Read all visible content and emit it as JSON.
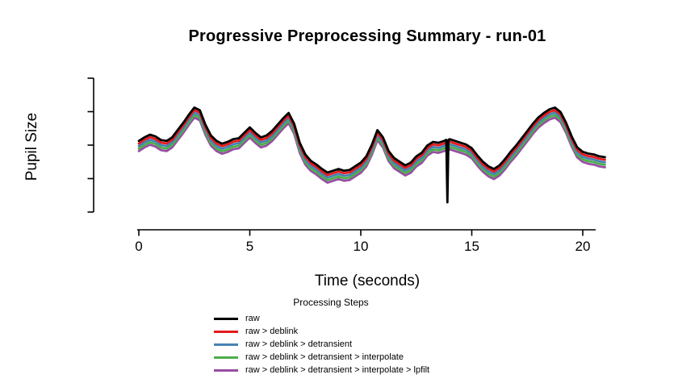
{
  "title": "Progressive Preprocessing Summary - run-01",
  "x_axis": {
    "label": "Time (seconds)",
    "ticks": [
      0,
      5,
      10,
      15,
      20
    ]
  },
  "y_axis": {
    "label": "Pupil Size",
    "tick_count": 5
  },
  "legend": {
    "title": "Processing Steps",
    "entries": [
      {
        "label": "raw",
        "color": "#000000"
      },
      {
        "label": "raw > deblink",
        "color": "#e41a1c"
      },
      {
        "label": "raw > deblink > detransient",
        "color": "#4682b4"
      },
      {
        "label": "raw > deblink > detransient > interpolate",
        "color": "#4daf4a"
      },
      {
        "label": "raw > deblink > detransient > interpolate > lpfilt",
        "color": "#984ea3"
      }
    ]
  },
  "chart_data": {
    "type": "line",
    "title": "Progressive Preprocessing Summary - run-01",
    "xlabel": "Time (seconds)",
    "ylabel": "Pupil Size",
    "x_range": [
      0,
      21
    ],
    "grid": false,
    "legend_position": "bottom",
    "offset_note": "each series traces the same pupil signal, drawn with a small constant vertical offset so all processing stages are visible; units are arbitrary pupil-size units",
    "x": [
      0,
      0.25,
      0.5,
      0.75,
      1,
      1.25,
      1.5,
      1.75,
      2,
      2.25,
      2.5,
      2.75,
      3,
      3.25,
      3.5,
      3.75,
      4,
      4.25,
      4.5,
      4.75,
      5,
      5.25,
      5.5,
      5.75,
      6,
      6.25,
      6.5,
      6.75,
      7,
      7.25,
      7.5,
      7.75,
      8,
      8.25,
      8.5,
      8.75,
      9,
      9.25,
      9.5,
      9.75,
      10,
      10.25,
      10.5,
      10.75,
      11,
      11.25,
      11.5,
      11.75,
      12,
      12.25,
      12.5,
      12.75,
      13,
      13.25,
      13.5,
      13.75,
      14,
      14.25,
      14.5,
      14.75,
      15,
      15.25,
      15.5,
      15.75,
      16,
      16.25,
      16.5,
      16.75,
      17,
      17.25,
      17.5,
      17.75,
      18,
      18.25,
      18.5,
      18.75,
      19,
      19.25,
      19.5,
      19.75,
      20,
      20.25,
      20.5,
      20.75,
      21
    ],
    "base_values": [
      54,
      56,
      57.5,
      56.5,
      54.5,
      54,
      56,
      60,
      64,
      68.5,
      72.5,
      71,
      63,
      57,
      54,
      52.5,
      53.5,
      55,
      55.5,
      58.5,
      61.5,
      58.5,
      56,
      57,
      59.5,
      63,
      66.5,
      69.5,
      63.5,
      53,
      46.5,
      43,
      41,
      38.5,
      36.5,
      37.5,
      38.5,
      37.5,
      38,
      40,
      42,
      45.5,
      52,
      60,
      56,
      48.5,
      44.5,
      42.5,
      40.5,
      42,
      45.5,
      47.5,
      51.5,
      53.5,
      53,
      54,
      55,
      54,
      53,
      52,
      50,
      46,
      42.5,
      40,
      38.5,
      40.5,
      44,
      48,
      51.5,
      55.5,
      59.5,
      63.5,
      67,
      69.5,
      71.5,
      72.5,
      70,
      64,
      56.5,
      50.5,
      48,
      47,
      46.5,
      45.5,
      45
    ],
    "series": [
      {
        "name": "raw",
        "color": "#000000",
        "offset": 0
      },
      {
        "name": "raw > deblink",
        "color": "#e41a1c",
        "offset": -1.4
      },
      {
        "name": "raw > deblink > detransient",
        "color": "#4682b4",
        "offset": -2.8
      },
      {
        "name": "raw > deblink > detransient > interpolate",
        "color": "#4daf4a",
        "offset": -4.2
      },
      {
        "name": "raw > deblink > detransient > interpolate > lpfilt",
        "color": "#984ea3",
        "offset": -5.6
      }
    ],
    "blink_artifact": {
      "series": "raw",
      "x": 13.9,
      "min_value": 20,
      "width": 0.1
    }
  }
}
